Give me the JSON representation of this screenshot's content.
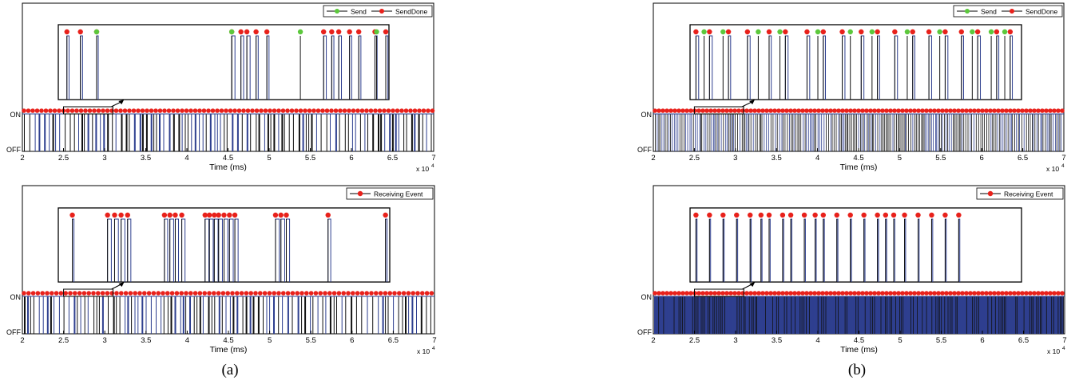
{
  "captions": [
    "(a)",
    "(b)"
  ],
  "chart_data": [
    {
      "type": "line",
      "panel": "a-top",
      "xlabel": "Time (ms)",
      "x_exponent": "x 10",
      "x_exponent_power": "4",
      "xlim": [
        2,
        7
      ],
      "xticks": [
        "2",
        "2.5",
        "3",
        "3.5",
        "4",
        "4.5",
        "5",
        "5.5",
        "6",
        "6.5",
        "7"
      ],
      "ylim": [
        0,
        1
      ],
      "yticks": [
        "OFF",
        "ON"
      ],
      "legend": [
        "Send",
        "SendDone"
      ],
      "legend_position": "top-right",
      "zoom_range": [
        2.5,
        3.1
      ],
      "colors": {
        "line": "#2e3f8f",
        "dark": "#111111",
        "send": "#5cc83c",
        "done": "#e8211b"
      },
      "pulses": [
        {
          "x": 2.51,
          "w": 0.004
        },
        {
          "x": 2.535,
          "w": 0.004
        },
        {
          "x": 2.565,
          "w": 0.003
        },
        {
          "x": 2.815,
          "w": 0.006
        },
        {
          "x": 2.832,
          "w": 0.005
        },
        {
          "x": 2.843,
          "w": 0.006
        },
        {
          "x": 2.86,
          "w": 0.004
        },
        {
          "x": 2.88,
          "w": 0.004
        },
        {
          "x": 2.985,
          "w": 0.005
        },
        {
          "x": 3.0,
          "w": 0.004
        },
        {
          "x": 3.013,
          "w": 0.005
        },
        {
          "x": 3.033,
          "w": 0.004
        },
        {
          "x": 3.05,
          "w": 0.004
        },
        {
          "x": 3.08,
          "w": 0.004
        },
        {
          "x": 3.1,
          "w": 0.004
        }
      ],
      "send_x": [
        2.565,
        2.815,
        2.942,
        3.083
      ]
    },
    {
      "type": "line",
      "panel": "b-top",
      "xlabel": "Time (ms)",
      "x_exponent": "x 10",
      "x_exponent_power": "4",
      "xlim": [
        2,
        7
      ],
      "xticks": [
        "2",
        "2.5",
        "3",
        "3.5",
        "4",
        "4.5",
        "5",
        "5.5",
        "6",
        "6.5",
        "7"
      ],
      "ylim": [
        0,
        1
      ],
      "yticks": [
        "OFF",
        "ON"
      ],
      "legend": [
        "Send",
        "SendDone"
      ],
      "legend_position": "top-right",
      "zoom_range": [
        2.5,
        3.1
      ],
      "colors": {
        "line": "#2e3f8f",
        "dark": "#111111",
        "send": "#5cc83c",
        "done": "#e8211b"
      },
      "pulses": [
        {
          "x": 2.505,
          "w": 0.005
        },
        {
          "x": 2.53,
          "w": 0.005
        },
        {
          "x": 2.565,
          "w": 0.004
        },
        {
          "x": 2.6,
          "w": 0.005
        },
        {
          "x": 2.64,
          "w": 0.004
        },
        {
          "x": 2.67,
          "w": 0.005
        },
        {
          "x": 2.71,
          "w": 0.005
        },
        {
          "x": 2.74,
          "w": 0.004
        },
        {
          "x": 2.775,
          "w": 0.005
        },
        {
          "x": 2.81,
          "w": 0.005
        },
        {
          "x": 2.84,
          "w": 0.004
        },
        {
          "x": 2.872,
          "w": 0.005
        },
        {
          "x": 2.905,
          "w": 0.004
        },
        {
          "x": 2.935,
          "w": 0.005
        },
        {
          "x": 2.965,
          "w": 0.005
        },
        {
          "x": 2.995,
          "w": 0.004
        },
        {
          "x": 3.025,
          "w": 0.005
        },
        {
          "x": 3.06,
          "w": 0.004
        },
        {
          "x": 3.085,
          "w": 0.004
        }
      ],
      "send_x": [
        2.52,
        2.555,
        2.62,
        2.66,
        2.73,
        2.79,
        2.83,
        2.895,
        2.955,
        3.015,
        3.05,
        3.075
      ]
    },
    {
      "type": "line",
      "panel": "a-bottom",
      "xlabel": "Time (ms)",
      "x_exponent": "x 10",
      "x_exponent_power": "4",
      "xlim": [
        2,
        7
      ],
      "xticks": [
        "2",
        "2.5",
        "3",
        "3.5",
        "4",
        "4.5",
        "5",
        "5.5",
        "6",
        "6.5",
        "7"
      ],
      "ylim": [
        0,
        1
      ],
      "yticks": [
        "OFF",
        "ON"
      ],
      "legend": [
        "Receiving Event"
      ],
      "legend_position": "top-right",
      "zoom_range": [
        2.5,
        3.1
      ],
      "colors": {
        "line": "#2e3f8f",
        "dark": "#111111",
        "send": "#5cc83c",
        "done": "#e8211b"
      },
      "pulses": [
        {
          "x": 2.52,
          "w": 0.003
        },
        {
          "x": 2.585,
          "w": 0.007
        },
        {
          "x": 2.598,
          "w": 0.007
        },
        {
          "x": 2.61,
          "w": 0.007
        },
        {
          "x": 2.622,
          "w": 0.006
        },
        {
          "x": 2.69,
          "w": 0.006
        },
        {
          "x": 2.7,
          "w": 0.007
        },
        {
          "x": 2.71,
          "w": 0.006
        },
        {
          "x": 2.722,
          "w": 0.006
        },
        {
          "x": 2.765,
          "w": 0.007
        },
        {
          "x": 2.773,
          "w": 0.007
        },
        {
          "x": 2.782,
          "w": 0.007
        },
        {
          "x": 2.79,
          "w": 0.007
        },
        {
          "x": 2.8,
          "w": 0.007
        },
        {
          "x": 2.81,
          "w": 0.007
        },
        {
          "x": 2.82,
          "w": 0.006
        },
        {
          "x": 2.895,
          "w": 0.007
        },
        {
          "x": 2.905,
          "w": 0.007
        },
        {
          "x": 2.915,
          "w": 0.006
        },
        {
          "x": 2.992,
          "w": 0.005
        },
        {
          "x": 3.098,
          "w": 0.003
        }
      ],
      "send_x": []
    },
    {
      "type": "line",
      "panel": "b-bottom",
      "xlabel": "Time (ms)",
      "x_exponent": "x 10",
      "x_exponent_power": "4",
      "xlim": [
        2,
        7
      ],
      "xticks": [
        "2",
        "2.5",
        "3",
        "3.5",
        "4",
        "4.5",
        "5",
        "5.5",
        "6",
        "6.5",
        "7"
      ],
      "ylim": [
        0,
        1
      ],
      "yticks": [
        "OFF",
        "ON"
      ],
      "legend": [
        "Receiving Event"
      ],
      "legend_position": "top-right",
      "zoom_range": [
        2.5,
        3.1
      ],
      "colors": {
        "line": "#2e3f8f",
        "dark": "#111111",
        "send": "#5cc83c",
        "done": "#e8211b"
      },
      "pulses": [
        {
          "x": 2.505,
          "w": 0.002
        },
        {
          "x": 2.53,
          "w": 0.002
        },
        {
          "x": 2.555,
          "w": 0.002
        },
        {
          "x": 2.58,
          "w": 0.002
        },
        {
          "x": 2.605,
          "w": 0.002
        },
        {
          "x": 2.625,
          "w": 0.002
        },
        {
          "x": 2.64,
          "w": 0.002
        },
        {
          "x": 2.665,
          "w": 0.002
        },
        {
          "x": 2.68,
          "w": 0.002
        },
        {
          "x": 2.705,
          "w": 0.002
        },
        {
          "x": 2.725,
          "w": 0.002
        },
        {
          "x": 2.74,
          "w": 0.002
        },
        {
          "x": 2.765,
          "w": 0.002
        },
        {
          "x": 2.79,
          "w": 0.002
        },
        {
          "x": 2.815,
          "w": 0.002
        },
        {
          "x": 2.84,
          "w": 0.002
        },
        {
          "x": 2.855,
          "w": 0.002
        },
        {
          "x": 2.87,
          "w": 0.002
        },
        {
          "x": 2.89,
          "w": 0.002
        },
        {
          "x": 2.915,
          "w": 0.002
        },
        {
          "x": 2.94,
          "w": 0.002
        },
        {
          "x": 2.965,
          "w": 0.002
        },
        {
          "x": 2.99,
          "w": 0.002
        }
      ],
      "send_x": []
    }
  ]
}
